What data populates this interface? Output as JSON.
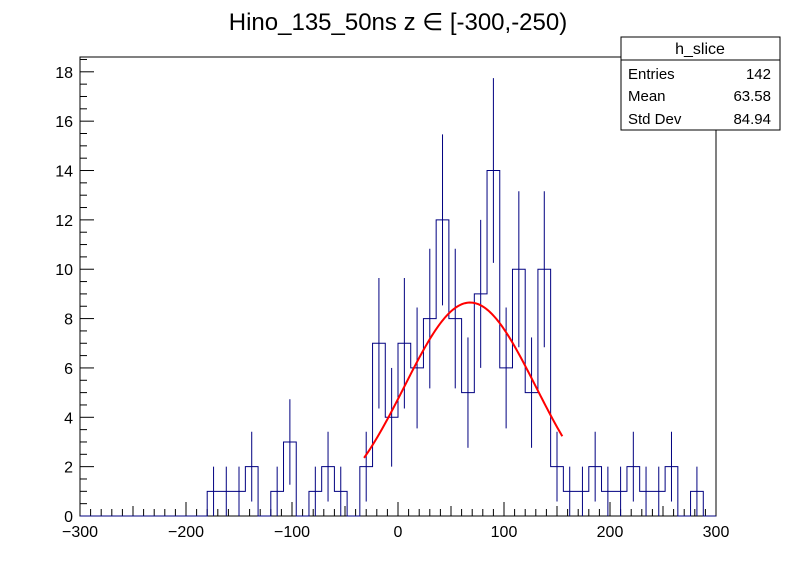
{
  "chart_data": {
    "type": "histogram",
    "title": "Hino_135_50ns z  ∈ [-300,-250)",
    "xlabel": "",
    "ylabel": "",
    "xlim": [
      -300,
      300
    ],
    "ylim": [
      0,
      18.6
    ],
    "x_ticks": [
      "−300",
      "−200",
      "−100",
      "0",
      "100",
      "200",
      "300"
    ],
    "x_tick_values": [
      -300,
      -200,
      -100,
      0,
      100,
      200,
      300
    ],
    "y_ticks": [
      "0",
      "2",
      "4",
      "6",
      "8",
      "10",
      "12",
      "14",
      "16",
      "18"
    ],
    "y_tick_values": [
      0,
      2,
      4,
      6,
      8,
      10,
      12,
      14,
      16,
      18
    ],
    "bin_width": 12,
    "bin_edges_start": -300,
    "counts": [
      0,
      0,
      0,
      0,
      0,
      0,
      0,
      0,
      0,
      0,
      1,
      1,
      1,
      2,
      0,
      1,
      3,
      0,
      1,
      2,
      1,
      0,
      2,
      7,
      4,
      7,
      6,
      8,
      12,
      8,
      5,
      9,
      14,
      6,
      10,
      5,
      10,
      2,
      1,
      1,
      2,
      1,
      1,
      2,
      1,
      1,
      2,
      0,
      1,
      0
    ],
    "histogram_color": "#000080",
    "fit": {
      "name": "gaus",
      "color": "#ff0000",
      "constant": 8.65,
      "mean": 68.0,
      "sigma": 62.0,
      "x_range": [
        -32,
        155
      ]
    },
    "stats_box": {
      "name": "h_slice",
      "rows": [
        {
          "label": "Entries",
          "value": "142"
        },
        {
          "label": "Mean",
          "value": "63.58"
        },
        {
          "label": "Std Dev",
          "value": "84.94"
        }
      ]
    }
  }
}
